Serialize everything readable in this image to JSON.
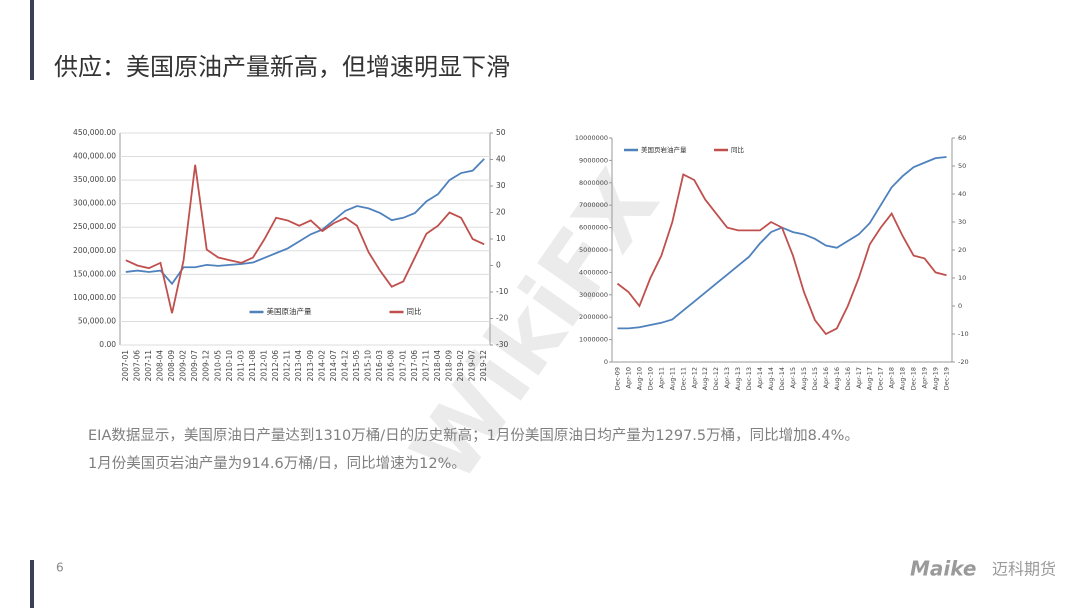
{
  "slide": {
    "title": "供应：美国原油产量新高，但增速明显下滑",
    "text": [
      "EIA数据显示，美国原油日产量达到1310万桶/日的历史新高；1月份美国原油日均产量为1297.5万桶，同比增加8.4%。",
      "1月份美国页岩油产量为914.6万桶/日，同比增速为12%。"
    ],
    "page_number": "6",
    "logo": "Maike",
    "logo_cn": "迈科期货",
    "watermark": "WikiFX"
  },
  "chart_data": [
    {
      "type": "line",
      "legend": "bottom",
      "grid": true,
      "categories": [
        "2007-01",
        "2007-06",
        "2007-11",
        "2008-04",
        "2008-09",
        "2009-02",
        "2009-07",
        "2009-12",
        "2010-05",
        "2010-10",
        "2011-03",
        "2011-08",
        "2012-01",
        "2012-06",
        "2012-11",
        "2013-04",
        "2013-09",
        "2014-02",
        "2014-07",
        "2014-12",
        "2015-05",
        "2015-10",
        "2016-03",
        "2016-08",
        "2017-01",
        "2017-06",
        "2017-11",
        "2018-04",
        "2018-09",
        "2019-02",
        "2019-07",
        "2019-12"
      ],
      "series": [
        {
          "name": "美国原油产量",
          "color": "#4f81bd",
          "values": [
            155000,
            158000,
            155000,
            158000,
            130000,
            165000,
            165000,
            170000,
            168000,
            170000,
            172000,
            175000,
            185000,
            195000,
            205000,
            220000,
            235000,
            245000,
            265000,
            285000,
            295000,
            290000,
            280000,
            265000,
            270000,
            280000,
            305000,
            320000,
            350000,
            365000,
            370000,
            395000
          ]
        },
        {
          "name": "同比",
          "color": "#c0504d",
          "axis": "y2",
          "values": [
            2,
            0,
            -1,
            1,
            -18,
            2,
            38,
            6,
            3,
            2,
            1,
            3,
            10,
            18,
            17,
            15,
            17,
            13,
            16,
            18,
            15,
            5,
            -2,
            -8,
            -6,
            3,
            12,
            15,
            20,
            18,
            10,
            8
          ]
        }
      ],
      "ylim": [
        0,
        450000
      ],
      "yticks": [
        {
          "value": 0,
          "label": "0.00"
        },
        {
          "value": 50000,
          "label": "50,000.00"
        },
        {
          "value": 100000,
          "label": "100,000.00"
        },
        {
          "value": 150000,
          "label": "150,000.00"
        },
        {
          "value": 200000,
          "label": "200,000.00"
        },
        {
          "value": 250000,
          "label": "250,000.00"
        },
        {
          "value": 300000,
          "label": "300,000.00"
        },
        {
          "value": 350000,
          "label": "350,000.00"
        },
        {
          "value": 400000,
          "label": "400,000.00"
        },
        {
          "value": 450000,
          "label": "450,000.00"
        }
      ],
      "y2lim": [
        -30,
        50
      ],
      "y2ticks": [
        -30,
        -20,
        -10,
        0,
        10,
        20,
        30,
        40,
        50
      ]
    },
    {
      "type": "line",
      "legend": "top",
      "grid": false,
      "categories": [
        "Dec-09",
        "Apr-10",
        "Aug-10",
        "Dec-10",
        "Apr-11",
        "Aug-11",
        "Dec-11",
        "Apr-12",
        "Aug-12",
        "Dec-12",
        "Apr-13",
        "Aug-13",
        "Dec-13",
        "Apr-14",
        "Aug-14",
        "Dec-14",
        "Apr-15",
        "Aug-15",
        "Dec-15",
        "Apr-16",
        "Aug-16",
        "Dec-16",
        "Apr-17",
        "Aug-17",
        "Dec-17",
        "Apr-18",
        "Aug-18",
        "Dec-18",
        "Apr-19",
        "Aug-19",
        "Dec-19"
      ],
      "series": [
        {
          "name": "美国页岩油产量",
          "color": "#4f81bd",
          "values": [
            1500000,
            1500000,
            1550000,
            1650000,
            1750000,
            1900000,
            2300000,
            2700000,
            3100000,
            3500000,
            3900000,
            4300000,
            4700000,
            5300000,
            5800000,
            6000000,
            5800000,
            5700000,
            5500000,
            5200000,
            5100000,
            5400000,
            5700000,
            6200000,
            7000000,
            7800000,
            8300000,
            8700000,
            8900000,
            9100000,
            9150000
          ]
        },
        {
          "name": "同比",
          "color": "#c0504d",
          "axis": "y2",
          "values": [
            8,
            5,
            0,
            10,
            18,
            30,
            47,
            45,
            38,
            33,
            28,
            27,
            27,
            27,
            30,
            28,
            18,
            5,
            -5,
            -10,
            -8,
            0,
            10,
            22,
            28,
            33,
            25,
            18,
            17,
            12,
            11
          ]
        }
      ],
      "ylim": [
        0,
        10000000
      ],
      "yticks": [
        0,
        1000000,
        2000000,
        3000000,
        4000000,
        5000000,
        6000000,
        7000000,
        8000000,
        9000000,
        10000000
      ],
      "y2lim": [
        -20,
        60
      ],
      "y2ticks": [
        -20,
        -10,
        0,
        10,
        20,
        30,
        40,
        50,
        60
      ]
    }
  ]
}
